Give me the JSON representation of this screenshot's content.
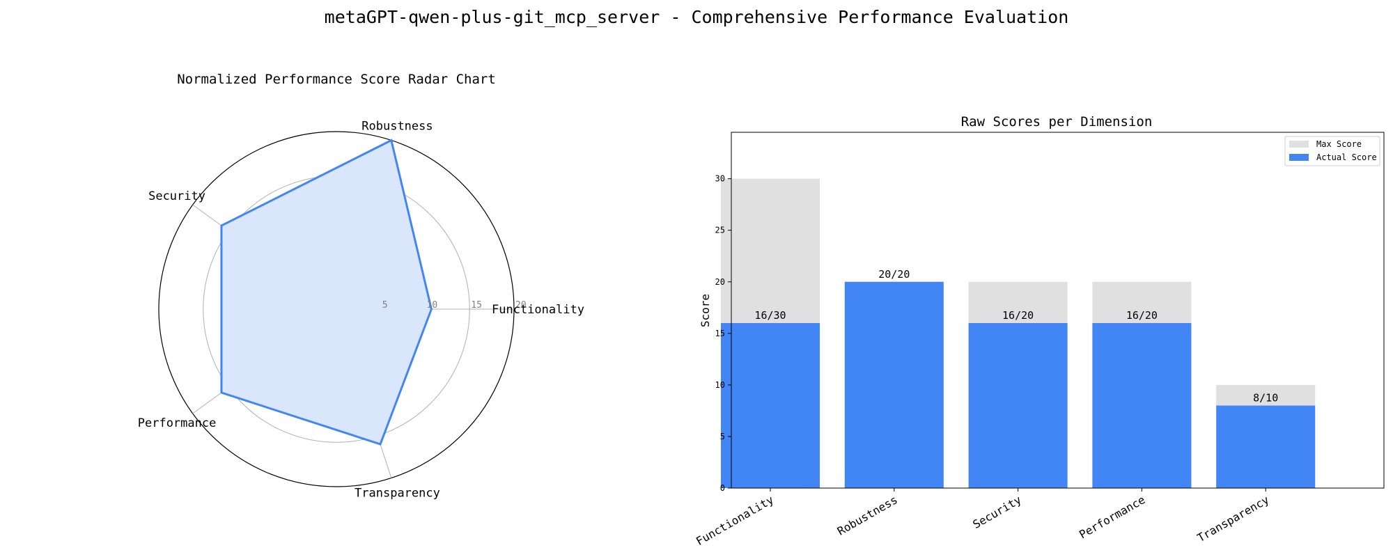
{
  "figure": {
    "title": "metaGPT-qwen-plus-git_mcp_server - Comprehensive Performance Evaluation"
  },
  "colors": {
    "actual": "#4285F4",
    "max": "#E0E0E0",
    "radar_fill": "#DAE6FB",
    "grid": "#B0B0B0"
  },
  "chart_data": [
    {
      "type": "radar",
      "title": "Normalized Performance Score Radar Chart",
      "axes": [
        "Functionality",
        "Robustness",
        "Security",
        "Performance",
        "Transparency"
      ],
      "values": [
        10.7,
        20,
        16,
        16,
        16
      ],
      "rlim": [
        0,
        20
      ],
      "rticks": [
        5,
        10,
        15,
        20
      ]
    },
    {
      "type": "bar",
      "title": "Raw Scores per Dimension",
      "ylabel": "Score",
      "categories": [
        "Functionality",
        "Robustness",
        "Security",
        "Performance",
        "Transparency"
      ],
      "series": [
        {
          "name": "Max Score",
          "values": [
            30,
            20,
            20,
            20,
            10
          ]
        },
        {
          "name": "Actual Score",
          "values": [
            16,
            20,
            16,
            16,
            8
          ]
        }
      ],
      "data_labels": [
        "16/30",
        "20/20",
        "16/20",
        "16/20",
        "8/10"
      ],
      "ylim": [
        0,
        34.5
      ],
      "yticks": [
        0,
        5,
        10,
        15,
        20,
        25,
        30
      ],
      "legend": "top-right"
    }
  ]
}
